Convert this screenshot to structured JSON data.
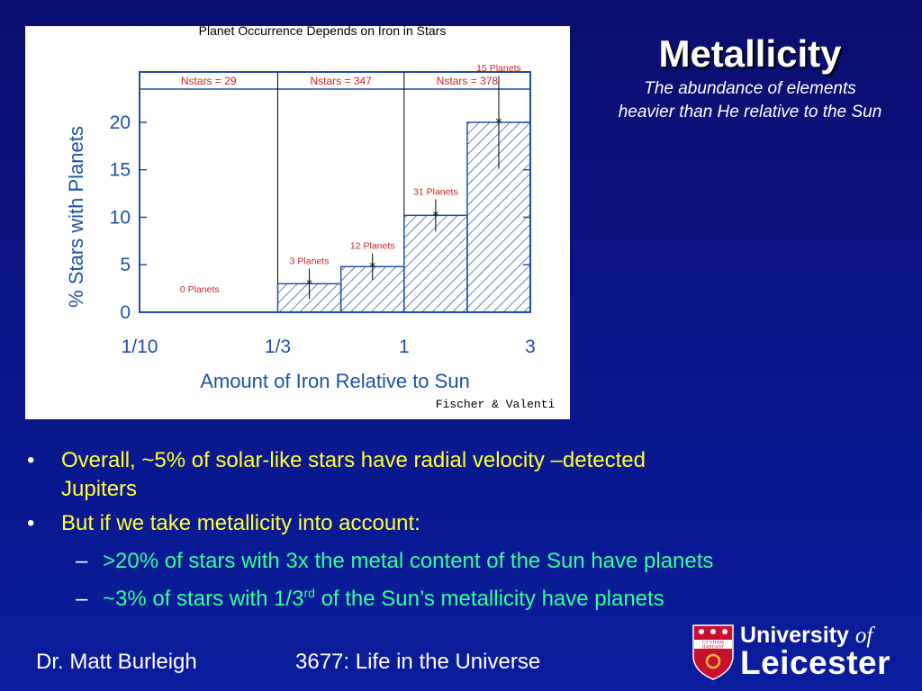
{
  "slide": {
    "title": "Metallicity",
    "subtitle_line1": "The abundance of elements",
    "subtitle_line2": "heavier than He relative to the Sun",
    "bullets": [
      {
        "text_line1": "Overall, ~5% of solar-like stars have radial velocity –detected",
        "text_line2": "Jupiters"
      },
      {
        "text": "But if we take metallicity into account:",
        "subs": [
          {
            "text": ">20% of stars with 3x the metal content of the Sun have planets"
          },
          {
            "pre": "~3% of stars with 1/3",
            "sup": "rd",
            "post": " of the Sun’s metallicity have planets"
          }
        ]
      }
    ],
    "bullet_marker": "•",
    "sub_marker": "–",
    "footer_author": "Dr. Matt Burleigh",
    "footer_course": "3677: Life in the Universe",
    "logo_line1": "University",
    "logo_of": "of",
    "logo_line2": "Leicester",
    "crest_motto_1": "UT VITAM",
    "crest_motto_2": "HABEANT"
  },
  "colors": {
    "background": "#0b1586",
    "title": "#ffffff",
    "bullet_text": "#ffff33",
    "sub_text": "#33ff99",
    "chart_axis": "#1f4fa8",
    "chart_annotation": "#d42020",
    "chart_hatch": "#1f3f9e",
    "crest_red": "#c8102e"
  },
  "chart_data": {
    "type": "bar",
    "title": "Planet Occurrence Depends on Iron in Stars",
    "xlabel": "Amount of Iron Relative to Sun",
    "ylabel": "% Stars with Planets",
    "x_scale": "log",
    "x_ticks": [
      "1/10",
      "1/3",
      "1",
      "3"
    ],
    "y_ticks": [
      0,
      5,
      10,
      15,
      20
    ],
    "ylim": [
      0,
      23.5
    ],
    "credit": "Fischer & Valenti",
    "panels": [
      {
        "label": "Nstars = 29"
      },
      {
        "label": "Nstars = 347"
      },
      {
        "label": "Nstars = 378"
      }
    ],
    "bins": [
      {
        "x0": 0.1,
        "x1": 0.333,
        "value": 0,
        "err": 0,
        "label": "0 Planets"
      },
      {
        "x0": 0.333,
        "x1": 0.577,
        "value": 3.0,
        "err": 1.6,
        "label": "3 Planets"
      },
      {
        "x0": 0.577,
        "x1": 1.0,
        "value": 4.8,
        "err": 1.4,
        "label": "12 Planets"
      },
      {
        "x0": 1.0,
        "x1": 1.732,
        "value": 10.2,
        "err": 1.7,
        "label": "31 Planets"
      },
      {
        "x0": 1.732,
        "x1": 3.0,
        "value": 20.0,
        "err": 4.9,
        "label": "15 Planets"
      }
    ],
    "grid": false,
    "legend": "none"
  }
}
